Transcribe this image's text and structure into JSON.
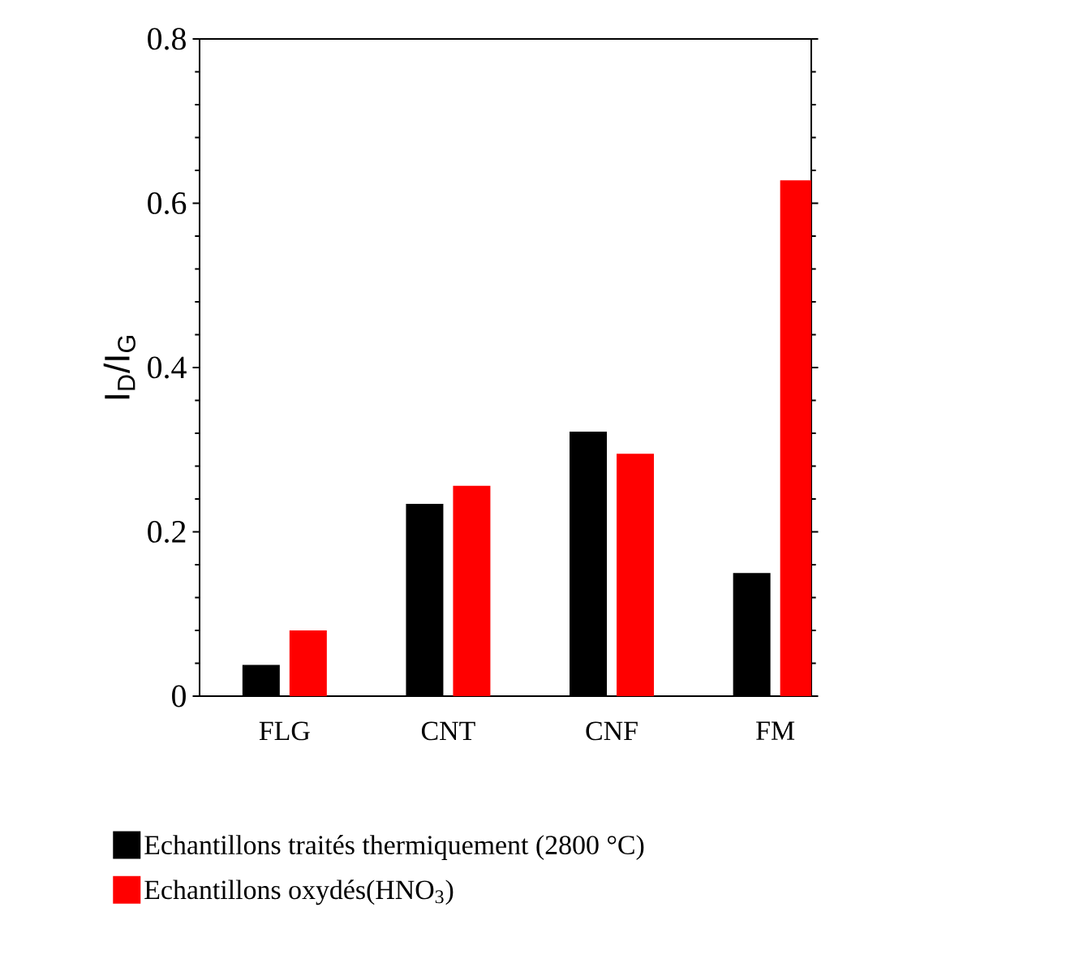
{
  "chart_data": {
    "type": "bar",
    "categories": [
      "FLG",
      "CNT",
      "CNF",
      "FM"
    ],
    "series": [
      {
        "name": "Echantillons traités thermiquement (2800 °C)",
        "color": "#000000",
        "values": [
          0.038,
          0.234,
          0.322,
          0.15
        ]
      },
      {
        "name": "Echantillons oxydés(HNO$_{3}$)",
        "color": "#ff0000",
        "values": [
          0.08,
          0.256,
          0.295,
          0.628
        ]
      }
    ],
    "ylabel": "I$_{D}$/I$_{G}$",
    "ylim": [
      0,
      0.8
    ],
    "yticks": [
      0,
      0.2,
      0.4,
      0.6,
      0.8
    ],
    "legend": "bottom"
  }
}
